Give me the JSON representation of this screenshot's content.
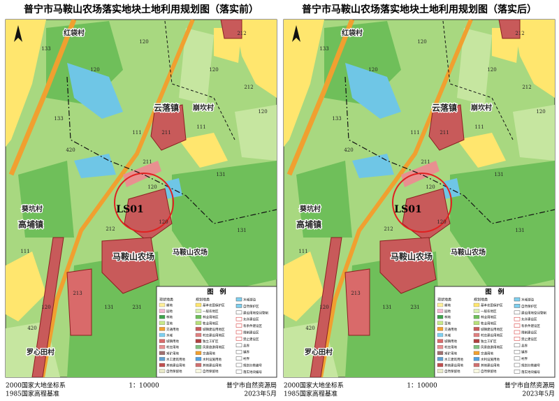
{
  "maps": [
    {
      "title": "普宁市马鞍山农场落实地块土地利用规划图（落实前）",
      "places": [
        "红袋村",
        "云落镇",
        "崩坎村",
        "葵坑村",
        "高埔镇",
        "马鞍山农场",
        "马鞍山农场",
        "罗心田村"
      ],
      "site": "LS01",
      "codes": [
        "120",
        "120",
        "120",
        "120",
        "120",
        "120",
        "120",
        "131",
        "131",
        "131",
        "131",
        "133",
        "133",
        "111",
        "111",
        "111",
        "211",
        "211",
        "212",
        "212",
        "212",
        "213",
        "231",
        "420",
        "420"
      ],
      "legend": {
        "title": "图　例",
        "heads": [
          "现状地类",
          "规划地类"
        ],
        "items": [
          "耕地",
          "园地",
          "林地",
          "草地",
          "交通用地",
          "水域",
          "城镇用地",
          "村庄用地",
          "采矿用地",
          "水工建筑用地",
          "其他建设用地",
          "自然保留地"
        ],
        "plan": [
          "基本农田保护区",
          "一般农地区",
          "林业用地区",
          "牧业用地区",
          "城镇建设用地区",
          "村庄建设用地区",
          "独立工矿区",
          "风景旅游用地区",
          "交通用地",
          "水利设施用地",
          "其他建设用地",
          "自然保留地"
        ],
        "right": [
          "水域湖泊",
          "自然保护区",
          "建设用地空间管制",
          "允许建设区",
          "有条件建设区",
          "限制建设区",
          "禁止建设区",
          "县界",
          "镇界",
          "村界",
          "规划分类编号",
          "落实地块编号"
        ]
      },
      "footer": {
        "datum": [
          "2000国家大地坐标系",
          "1985国家高程基准"
        ],
        "scale": "1：10000",
        "org": [
          "普宁市自然资源局",
          "2023年5月"
        ]
      }
    },
    {
      "title": "普宁市马鞍山农场落实地块土地利用规划图（落实后）",
      "places": [
        "红袋村",
        "云落镇",
        "崩坎村",
        "葵坑村",
        "高埔镇",
        "马鞍山农场",
        "马鞍山农场",
        "罗心田村"
      ],
      "site": "LS01",
      "codes": [
        "120",
        "120",
        "120",
        "120",
        "120",
        "120",
        "120",
        "131",
        "131",
        "131",
        "131",
        "133",
        "133",
        "111",
        "111",
        "111",
        "211",
        "211",
        "212",
        "212",
        "212",
        "213",
        "231",
        "420",
        "420"
      ],
      "legend": {
        "title": "图　例",
        "heads": [
          "现状地类",
          "规划地类"
        ],
        "items": [
          "耕地",
          "园地",
          "林地",
          "草地",
          "交通用地",
          "水域",
          "城镇用地",
          "村庄用地",
          "采矿用地",
          "水工建筑用地",
          "其他建设用地",
          "自然保留地"
        ],
        "plan": [
          "基本农田保护区",
          "一般农地区",
          "林业用地区",
          "牧业用地区",
          "城镇建设用地区",
          "村庄建设用地区",
          "独立工矿区",
          "风景旅游用地区",
          "交通用地",
          "水利设施用地",
          "其他建设用地",
          "自然保留地"
        ],
        "right": [
          "水域湖泊",
          "自然保护区",
          "建设用地空间管制",
          "允许建设区",
          "有条件建设区",
          "限制建设区",
          "禁止建设区",
          "县界",
          "镇界",
          "村界",
          "规划分类编号",
          "落实地块编号"
        ]
      },
      "footer": {
        "datum": [
          "2000国家大地坐标系",
          "1985国家高程基准"
        ],
        "scale": "1：10000",
        "org": [
          "普宁市自然资源局",
          "2023年5月"
        ]
      }
    }
  ]
}
